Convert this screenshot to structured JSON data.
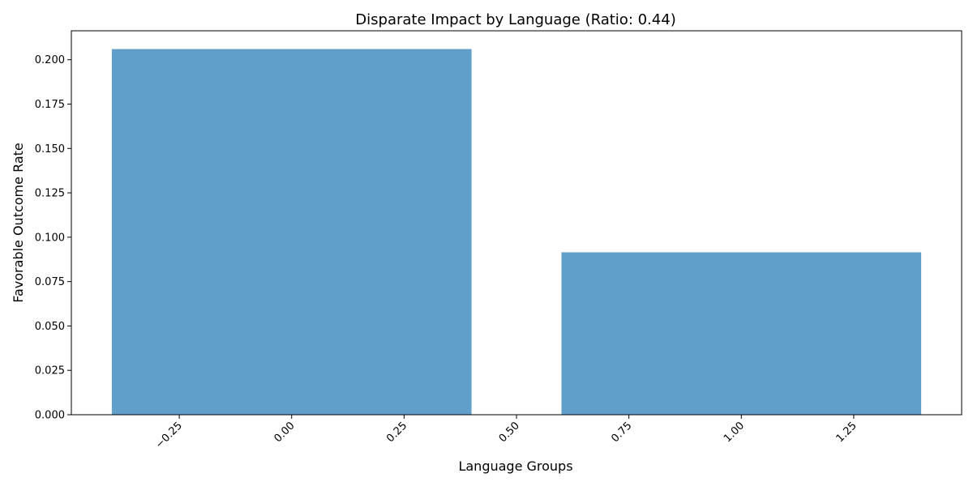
{
  "chart_data": {
    "type": "bar",
    "title": "Disparate Impact by Language (Ratio: 0.44)",
    "xlabel": "Language Groups",
    "ylabel": "Favorable Outcome Rate",
    "x": [
      0,
      1
    ],
    "values": [
      0.206,
      0.0915
    ],
    "bar_width": 0.8,
    "bar_color": "#619fcb",
    "xlim": [
      -0.49,
      1.49
    ],
    "ylim": [
      0,
      0.2163
    ],
    "xticks": [
      -0.25,
      0.0,
      0.25,
      0.5,
      0.75,
      1.0,
      1.25
    ],
    "xtick_labels": [
      "−0.25",
      "0.00",
      "0.25",
      "0.50",
      "0.75",
      "1.00",
      "1.25"
    ],
    "yticks": [
      0.0,
      0.025,
      0.05,
      0.075,
      0.1,
      0.125,
      0.15,
      0.175,
      0.2
    ],
    "ytick_labels": [
      "0.000",
      "0.025",
      "0.050",
      "0.075",
      "0.100",
      "0.125",
      "0.150",
      "0.175",
      "0.200"
    ],
    "grid": false,
    "legend": "none"
  }
}
